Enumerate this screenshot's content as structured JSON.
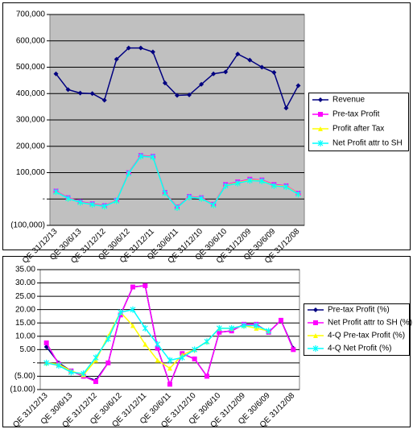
{
  "chart_data": [
    {
      "type": "line",
      "categories": [
        "QE 31/12/13",
        null,
        "QE 30/6/13",
        null,
        "QE 31/12/12",
        null,
        "QE 30/6/12",
        null,
        "QE 31/12/11",
        null,
        "QE 30/6/11",
        null,
        "QE 31/12/10",
        null,
        "QE 30/6/10",
        null,
        "QE 31/12/09",
        null,
        "QE 30/6/09",
        null,
        "QE 31/12/08"
      ],
      "series": [
        {
          "name": "Revenue",
          "color": "#000080",
          "marker": "diamond",
          "values": [
            475000,
            415000,
            402000,
            400000,
            375000,
            530000,
            573000,
            573000,
            558000,
            440000,
            393000,
            395000,
            435000,
            475000,
            482000,
            550000,
            527000,
            500000,
            480000,
            345000,
            430000
          ]
        },
        {
          "name": "Pre-tax Profit",
          "color": "#ff00ff",
          "marker": "square",
          "values": [
            30000,
            5000,
            -10000,
            -18000,
            -25000,
            -5000,
            100000,
            165000,
            162000,
            25000,
            -30000,
            10000,
            5000,
            -20000,
            55000,
            65000,
            75000,
            72000,
            55000,
            50000,
            22000
          ]
        },
        {
          "name": "Profit after Tax",
          "color": "#ffff00",
          "marker": "triangle",
          "values": [
            28000,
            3000,
            -12000,
            -20000,
            -27000,
            -6000,
            98000,
            163000,
            160000,
            23000,
            -32000,
            8000,
            3000,
            -22000,
            52000,
            62000,
            72000,
            70000,
            52000,
            48000,
            20000
          ]
        },
        {
          "name": "Net Profit attr to SH",
          "color": "#00ffff",
          "marker": "star",
          "values": [
            27000,
            2000,
            -13000,
            -21000,
            -28000,
            -7000,
            97000,
            162000,
            159000,
            22000,
            -33000,
            7000,
            2000,
            -23000,
            50000,
            60000,
            70000,
            68000,
            50000,
            46000,
            18000
          ]
        }
      ],
      "ylim": [
        -100000,
        700000
      ],
      "yticks": [
        {
          "value": -100000,
          "label": "(100,000)"
        },
        {
          "value": 0,
          "label": "-"
        },
        {
          "value": 100000,
          "label": "100,000"
        },
        {
          "value": 200000,
          "label": "200,000"
        },
        {
          "value": 300000,
          "label": "300,000"
        },
        {
          "value": 400000,
          "label": "400,000"
        },
        {
          "value": 500000,
          "label": "500,000"
        },
        {
          "value": 600000,
          "label": "600,000"
        },
        {
          "value": 700000,
          "label": "700,000"
        }
      ],
      "grid": true,
      "legend": "right",
      "background": "#c0c0c0"
    },
    {
      "type": "line",
      "categories": [
        "QE 31/12/13",
        null,
        "QE 30/6/13",
        null,
        "QE 31/12/12",
        null,
        "QE 30/6/12",
        null,
        "QE 31/12/11",
        null,
        "QE 30/6/11",
        null,
        "QE 31/12/10",
        null,
        "QE 30/6/10",
        null,
        "QE 31/12/09",
        null,
        "QE 30/6/09",
        null,
        "QE 31/12/08"
      ],
      "series": [
        {
          "name": "Pre-tax Profit (%)",
          "color": "#000080",
          "marker": "diamond",
          "values": [
            6,
            0,
            -3,
            -5,
            -6.5,
            0,
            18,
            28.5,
            29,
            5.5,
            -8,
            3.5,
            1.5,
            -5,
            11.5,
            12,
            14.5,
            14.5,
            11.5,
            16,
            5.5
          ]
        },
        {
          "name": "Net Profit attr to SH (%)",
          "color": "#ff00ff",
          "marker": "square",
          "values": [
            7.5,
            -0.5,
            -3,
            -5,
            -7,
            0,
            18,
            28.5,
            29,
            5.5,
            -8,
            3.5,
            1.5,
            -5,
            11.5,
            12,
            14.5,
            14.5,
            11.5,
            16,
            5
          ]
        },
        {
          "name": "4-Q Pre-tax Profit (%)",
          "color": "#ffff00",
          "marker": "triangle",
          "values": [
            0,
            -0.5,
            -3,
            -4.5,
            1,
            10,
            19,
            14,
            7,
            1,
            -2,
            3,
            5,
            8,
            13,
            13,
            14,
            13,
            12,
            null,
            null
          ]
        },
        {
          "name": "4-Q Net Profit (%)",
          "color": "#00ffff",
          "marker": "star",
          "values": [
            0,
            -1,
            -3.5,
            -4,
            2,
            9,
            19,
            20,
            13,
            7,
            1,
            2,
            5,
            8,
            13,
            13,
            14,
            14,
            12,
            null,
            null
          ]
        }
      ],
      "ylim": [
        -10,
        35
      ],
      "yticks": [
        {
          "value": -10,
          "label": "(10.00)"
        },
        {
          "value": -5,
          "label": "(5.00)"
        },
        {
          "value": 0,
          "label": "-"
        },
        {
          "value": 5,
          "label": "5.00"
        },
        {
          "value": 10,
          "label": "10.00"
        },
        {
          "value": 15,
          "label": "15.00"
        },
        {
          "value": 20,
          "label": "20.00"
        },
        {
          "value": 25,
          "label": "25.00"
        },
        {
          "value": 30,
          "label": "30.00"
        },
        {
          "value": 35,
          "label": "35.00"
        }
      ],
      "grid": true,
      "legend": "right",
      "background": "#ffffff"
    }
  ]
}
